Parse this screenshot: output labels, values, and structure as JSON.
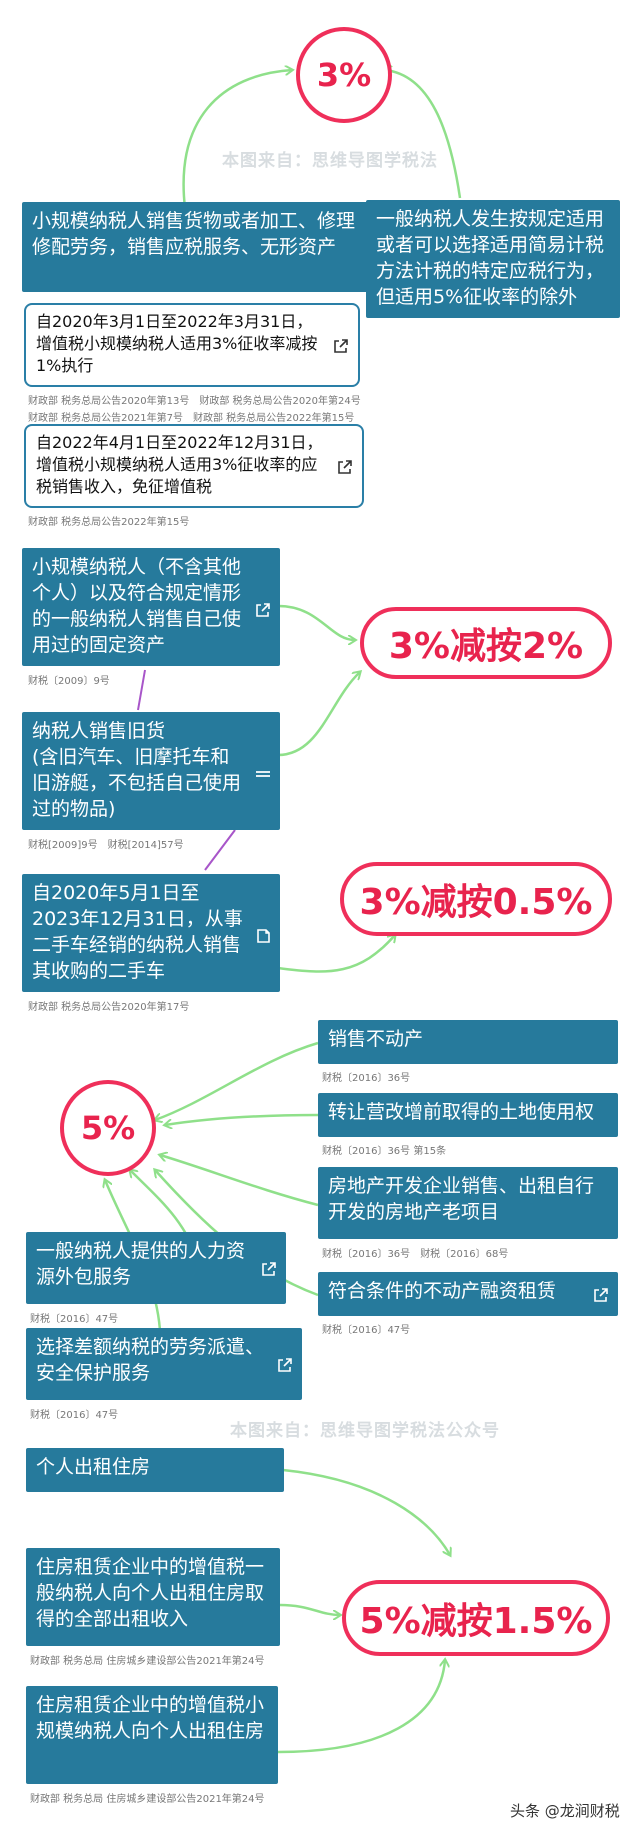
{
  "watermarks": [
    "本图来自：思维导图学税法",
    "本图来自：思维导图学税法公众号"
  ],
  "footer": "头条 @龙涧财税",
  "sections": {
    "three_percent": {
      "center": "3%",
      "left_box": "小规模纳税人销售货物或者加工、修理修配劳务，销售应税服务、无形资产",
      "right_box": "一般纳税人发生按规定适用或者可以选择适用简易计税方法计税的特定应税行为，但适用5%征收率的除外",
      "note1": "自2020年3月1日至2022年3月31日，增值税小规模纳税人适用3%征收率减按1%执行",
      "note1_sources_row1": [
        "财政部 税务总局公告2020年第13号",
        "财政部 税务总局公告2020年第24号"
      ],
      "note1_sources_row2": [
        "财政部 税务总局公告2021年第7号",
        "财政部 税务总局公告2022年第15号"
      ],
      "note2": "自2022年4月1日至2022年12月31日，增值税小规模纳税人适用3%征收率的应税销售收入，免征增值税",
      "note2_sources": [
        "财政部 税务总局公告2022年第15号"
      ]
    },
    "three_to_two": {
      "target": "3%减按2%",
      "box1": "小规模纳税人（不含其他个人）以及符合规定情形的一般纳税人销售自己使用过的固定资产",
      "box1_sources": [
        "财税〔2009〕9号"
      ],
      "box2_line1": "纳税人销售旧货",
      "box2_line2": "(含旧汽车、旧摩托车和旧游艇，不包括自己使用过的物品)",
      "box2_sources": [
        "财税[2009]9号",
        "财税[2014]57号"
      ]
    },
    "three_to_half": {
      "target": "3%减按0.5%",
      "box": "自2020年5月1日至2023年12月31日，从事二手车经销的纳税人销售其收购的二手车",
      "box_sources": [
        "财政部 税务总局公告2020年第17号"
      ]
    },
    "five_percent": {
      "center": "5%",
      "r1": "销售不动产",
      "r1_sources": [
        "财税〔2016〕36号"
      ],
      "r2": "转让营改增前取得的土地使用权",
      "r2_sources": [
        "财税〔2016〕36号 第15条"
      ],
      "r3": "房地产开发企业销售、出租自行开发的房地产老项目",
      "r3_sources": [
        "财税〔2016〕36号",
        "财税〔2016〕68号"
      ],
      "r4": "符合条件的不动产融资租赁",
      "r4_sources": [
        "财税〔2016〕47号"
      ],
      "l1": "一般纳税人提供的人力资源外包服务",
      "l1_sources": [
        "财税〔2016〕47号"
      ],
      "l2": "选择差额纳税的劳务派遣、安全保护服务",
      "l2_sources": [
        "财税〔2016〕47号"
      ]
    },
    "five_to_onefive": {
      "target": "5%减按1.5%",
      "b1": "个人出租住房",
      "b2": "住房租赁企业中的增值税一般纳税人向个人出租住房取得的全部出租收入",
      "b2_sources": [
        "财政部 税务总局 住房城乡建设部公告2021年第24号"
      ],
      "b3": "住房租赁企业中的增值税小规模纳税人向个人出租住房",
      "b3_sources": [
        "财政部 税务总局 住房城乡建设部公告2021年第24号"
      ]
    }
  },
  "colors": {
    "box": "#267a9c",
    "accent": "#ef2f5a",
    "arrow": "#8fe08a",
    "purple": "#a855c9"
  }
}
